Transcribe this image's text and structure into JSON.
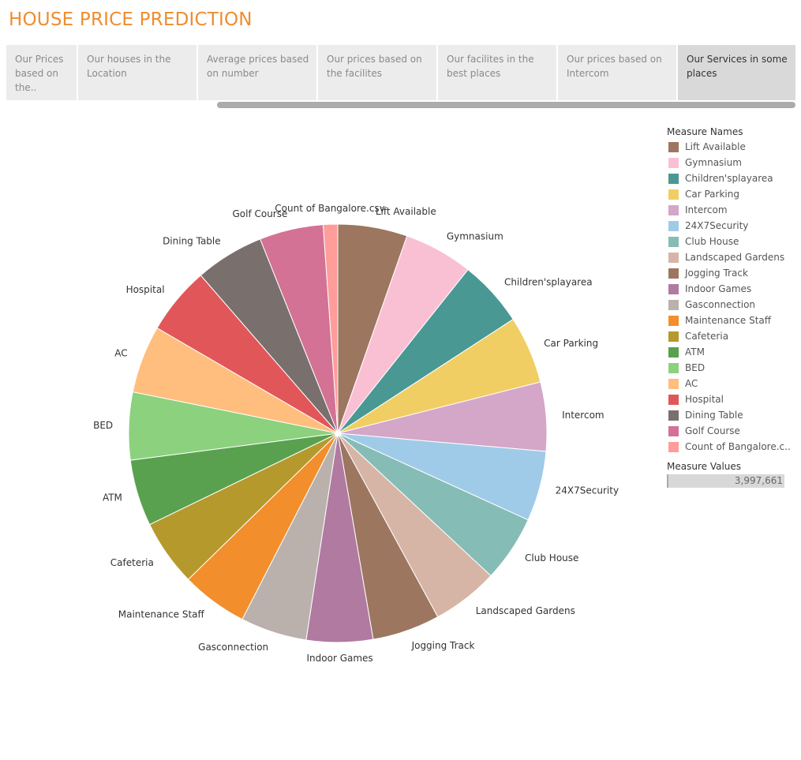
{
  "app": {
    "title": "HOUSE PRICE PREDICTION"
  },
  "tabs": [
    {
      "label": "Our Prices based on the..",
      "active": false
    },
    {
      "label": "Our houses in the Location",
      "active": false
    },
    {
      "label": "Average prices based on number",
      "active": false
    },
    {
      "label": "Our prices based on the facilites",
      "active": false
    },
    {
      "label": "Our facilites in the best places",
      "active": false
    },
    {
      "label": "Our prices based on Intercom",
      "active": false
    },
    {
      "label": "Our Services in some places",
      "active": true
    }
  ],
  "legend": {
    "title": "Measure Names",
    "items": [
      {
        "label": "Lift Available",
        "color": "#9d7660"
      },
      {
        "label": "Gymnasium",
        "color": "#f9c0d4"
      },
      {
        "label": "Children'splayarea",
        "color": "#499894"
      },
      {
        "label": "Car Parking",
        "color": "#f1ce63"
      },
      {
        "label": "Intercom",
        "color": "#d4a6c8"
      },
      {
        "label": "24X7Security",
        "color": "#a0cbe8"
      },
      {
        "label": "Club House",
        "color": "#86bcb6"
      },
      {
        "label": "Landscaped Gardens",
        "color": "#d7b5a6"
      },
      {
        "label": "Jogging Track",
        "color": "#9d7660"
      },
      {
        "label": "Indoor Games",
        "color": "#b07aa1"
      },
      {
        "label": "Gasconnection",
        "color": "#bab0ac"
      },
      {
        "label": "Maintenance Staff",
        "color": "#f28e2b"
      },
      {
        "label": "Cafeteria",
        "color": "#b6992d"
      },
      {
        "label": "ATM",
        "color": "#59a14f"
      },
      {
        "label": "BED",
        "color": "#8cd17d"
      },
      {
        "label": "AC",
        "color": "#ffbe7d"
      },
      {
        "label": "Hospital",
        "color": "#e15759"
      },
      {
        "label": "Dining Table",
        "color": "#79706e"
      },
      {
        "label": "Golf Course",
        "color": "#d37295"
      },
      {
        "label": "Count of Bangalore.c..",
        "color": "#ff9d9a"
      }
    ]
  },
  "measure_values": {
    "title": "Measure Values",
    "value": "3,997,661"
  },
  "chart_data": {
    "type": "pie",
    "slices": [
      {
        "label": "Lift Available",
        "value": 5.55,
        "color": "#9d7660"
      },
      {
        "label": "Gymnasium",
        "value": 5.5,
        "color": "#f9c0d4"
      },
      {
        "label": "Children'splayarea",
        "value": 5.3,
        "color": "#499894"
      },
      {
        "label": "Car Parking",
        "value": 5.4,
        "color": "#f1ce63"
      },
      {
        "label": "Intercom",
        "value": 5.5,
        "color": "#d4a6c8"
      },
      {
        "label": "24X7Security",
        "value": 5.6,
        "color": "#a0cbe8"
      },
      {
        "label": "Club House",
        "value": 5.3,
        "color": "#86bcb6"
      },
      {
        "label": "Landscaped Gardens",
        "value": 5.3,
        "color": "#d7b5a6"
      },
      {
        "label": "Jogging Track",
        "value": 5.4,
        "color": "#9d7660"
      },
      {
        "label": "Indoor Games",
        "value": 5.3,
        "color": "#b07aa1"
      },
      {
        "label": "Gasconnection",
        "value": 5.3,
        "color": "#bab0ac"
      },
      {
        "label": "Maintenance Staff",
        "value": 5.3,
        "color": "#f28e2b"
      },
      {
        "label": "Cafeteria",
        "value": 5.3,
        "color": "#b6992d"
      },
      {
        "label": "ATM",
        "value": 5.3,
        "color": "#59a14f"
      },
      {
        "label": "BED",
        "value": 5.4,
        "color": "#8cd17d"
      },
      {
        "label": "AC",
        "value": 5.4,
        "color": "#ffbe7d"
      },
      {
        "label": "Hospital",
        "value": 5.4,
        "color": "#e15759"
      },
      {
        "label": "Dining Table",
        "value": 5.5,
        "color": "#79706e"
      },
      {
        "label": "Golf Course",
        "value": 5.1,
        "color": "#d37295"
      },
      {
        "label": "Count of Bangalore.csv",
        "value": 1.15,
        "color": "#ff9d9a"
      }
    ]
  }
}
